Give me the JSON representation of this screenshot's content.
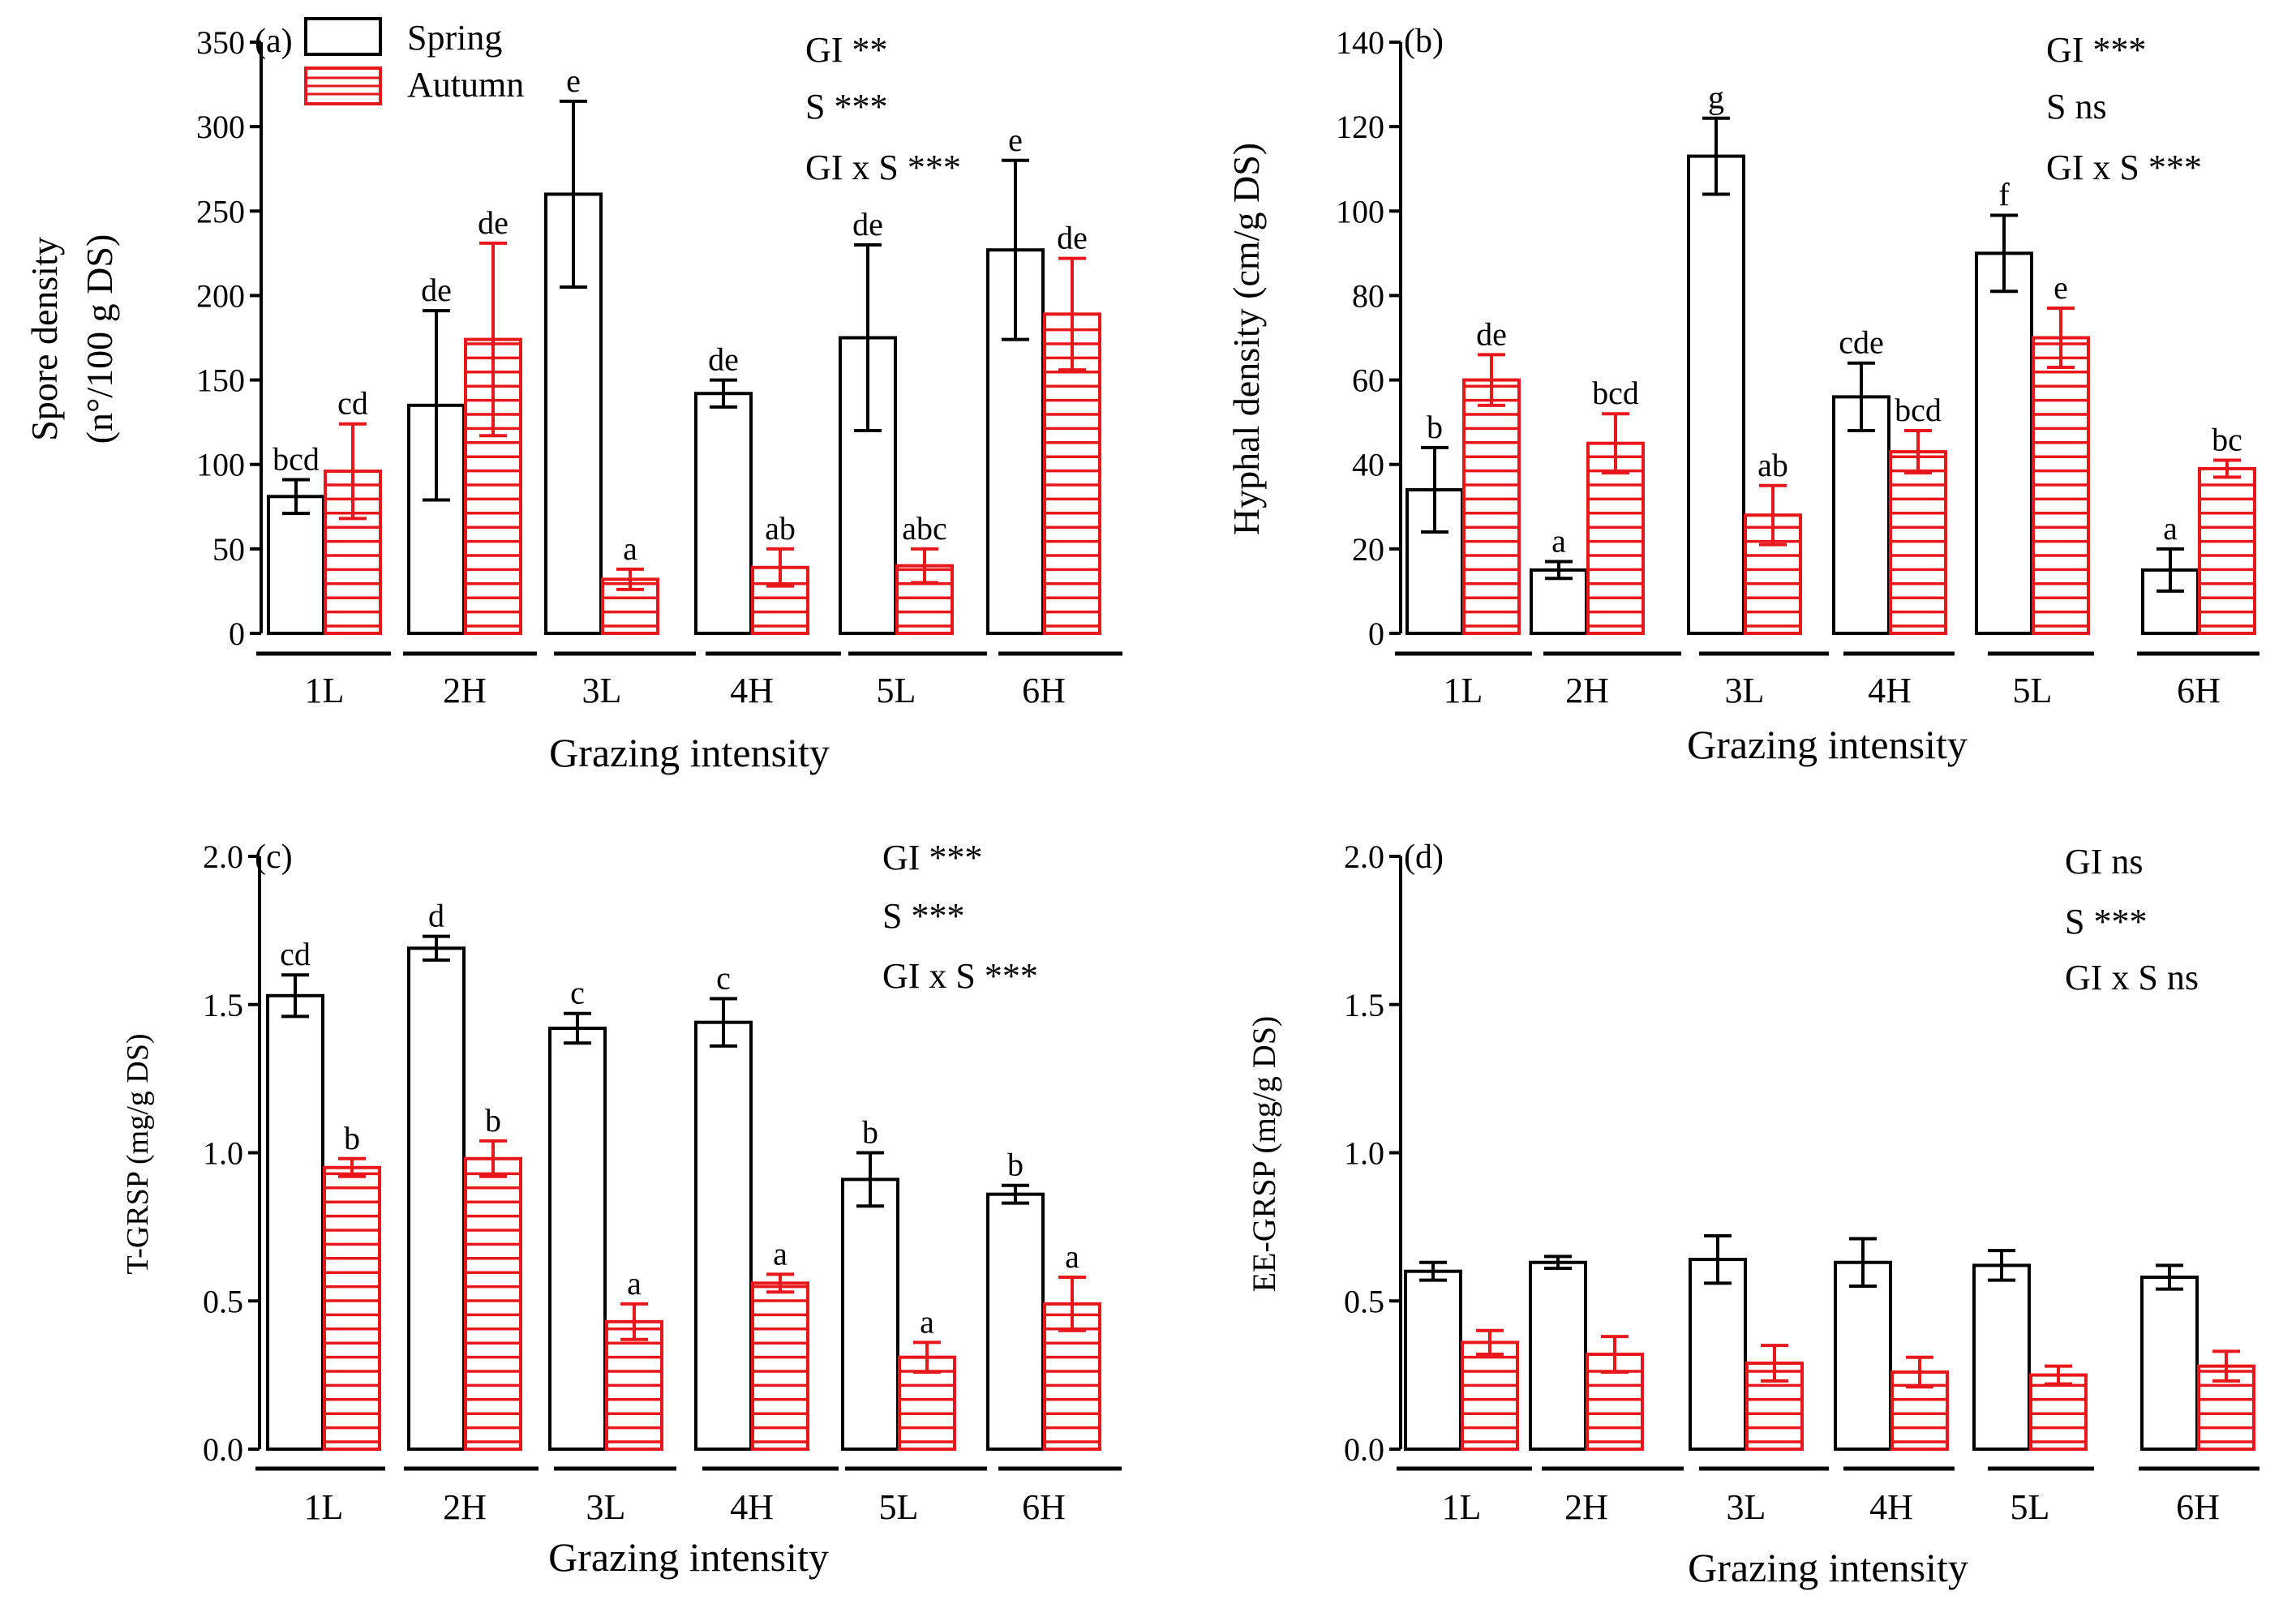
{
  "colors": {
    "spring": "#000000",
    "autumn": "#e8171b",
    "background": "#ffffff"
  },
  "legend": {
    "spring": "Spring",
    "autumn": "Autumn"
  },
  "chart_data": [
    {
      "panel": "(a)",
      "type": "bar",
      "ylabel_lines": [
        "Spore density",
        "(n°/100 g DS)"
      ],
      "xlabel": "Grazing intensity",
      "categories": [
        "1L",
        "2H",
        "3L",
        "4H",
        "5L",
        "6H"
      ],
      "ylim": [
        0,
        350
      ],
      "yticks": [
        0,
        50,
        100,
        150,
        200,
        250,
        300,
        350
      ],
      "ytick_labels": [
        "0",
        "50",
        "100",
        "150",
        "200",
        "250",
        "300",
        "350"
      ],
      "series": [
        {
          "name": "Spring",
          "values": [
            81,
            135,
            260,
            142,
            175,
            227
          ],
          "errors": [
            10,
            56,
            55,
            8,
            55,
            53
          ],
          "letters": [
            "bcd",
            "de",
            "e",
            "de",
            "de",
            "e"
          ]
        },
        {
          "name": "Autumn",
          "values": [
            96,
            174,
            32,
            39,
            40,
            189
          ],
          "errors": [
            28,
            57,
            6,
            11,
            10,
            33
          ],
          "letters": [
            "cd",
            "de",
            "a",
            "ab",
            "abc",
            "de"
          ]
        }
      ],
      "stats": [
        "GI **",
        "S ***",
        "GI x S ***"
      ],
      "legend_shown": true
    },
    {
      "panel": "(b)",
      "type": "bar",
      "ylabel_lines": [
        "Hyphal density (cm/g DS)"
      ],
      "xlabel": "Grazing intensity",
      "categories": [
        "1L",
        "2H",
        "3L",
        "4H",
        "5L",
        "6H"
      ],
      "ylim": [
        0,
        140
      ],
      "yticks": [
        0,
        20,
        40,
        60,
        80,
        100,
        120,
        140
      ],
      "ytick_labels": [
        "0",
        "20",
        "40",
        "60",
        "80",
        "100",
        "120",
        "140"
      ],
      "series": [
        {
          "name": "Spring",
          "values": [
            34,
            15,
            113,
            56,
            90,
            15
          ],
          "errors": [
            10,
            2,
            9,
            8,
            9,
            5
          ],
          "letters": [
            "b",
            "a",
            "g",
            "cde",
            "f",
            "a"
          ]
        },
        {
          "name": "Autumn",
          "values": [
            60,
            45,
            28,
            43,
            70,
            39
          ],
          "errors": [
            6,
            7,
            7,
            5,
            7,
            2
          ],
          "letters": [
            "de",
            "bcd",
            "ab",
            "bcd",
            "e",
            "bc"
          ]
        }
      ],
      "stats": [
        "GI ***",
        "S ns",
        "GI x S ***"
      ],
      "legend_shown": false
    },
    {
      "panel": "(c)",
      "type": "bar",
      "ylabel_lines": [
        "T-GRSP (mg/g DS)"
      ],
      "xlabel": "Grazing intensity",
      "categories": [
        "1L",
        "2H",
        "3L",
        "4H",
        "5L",
        "6H"
      ],
      "ylim": [
        0,
        2.0
      ],
      "yticks": [
        0,
        0.5,
        1.0,
        1.5,
        2.0
      ],
      "ytick_labels": [
        "0.0",
        "0.5",
        "1.0",
        "1.5",
        "2.0"
      ],
      "series": [
        {
          "name": "Spring",
          "values": [
            1.53,
            1.69,
            1.42,
            1.44,
            0.91,
            0.86
          ],
          "errors": [
            0.07,
            0.04,
            0.05,
            0.08,
            0.09,
            0.03
          ],
          "letters": [
            "cd",
            "d",
            "c",
            "c",
            "b",
            "b"
          ]
        },
        {
          "name": "Autumn",
          "values": [
            0.95,
            0.98,
            0.43,
            0.56,
            0.31,
            0.49
          ],
          "errors": [
            0.03,
            0.06,
            0.06,
            0.03,
            0.05,
            0.09
          ],
          "letters": [
            "b",
            "b",
            "a",
            "a",
            "a",
            "a"
          ]
        }
      ],
      "stats": [
        "GI ***",
        "S ***",
        "GI x S ***"
      ],
      "legend_shown": false
    },
    {
      "panel": "(d)",
      "type": "bar",
      "ylabel_lines": [
        "EE-GRSP (mg/g DS)"
      ],
      "xlabel": "Grazing intensity",
      "categories": [
        "1L",
        "2H",
        "3L",
        "4H",
        "5L",
        "6H"
      ],
      "ylim": [
        0,
        2.0
      ],
      "yticks": [
        0,
        0.5,
        1.0,
        1.5,
        2.0
      ],
      "ytick_labels": [
        "0.0",
        "0.5",
        "1.0",
        "1.5",
        "2.0"
      ],
      "series": [
        {
          "name": "Spring",
          "values": [
            0.6,
            0.63,
            0.64,
            0.63,
            0.62,
            0.58
          ],
          "errors": [
            0.03,
            0.02,
            0.08,
            0.08,
            0.05,
            0.04
          ],
          "letters": [
            "",
            "",
            "",
            "",
            "",
            ""
          ]
        },
        {
          "name": "Autumn",
          "values": [
            0.36,
            0.32,
            0.29,
            0.26,
            0.25,
            0.28
          ],
          "errors": [
            0.04,
            0.06,
            0.06,
            0.05,
            0.03,
            0.05
          ],
          "letters": [
            "",
            "",
            "",
            "",
            "",
            ""
          ]
        }
      ],
      "stats": [
        "GI ns",
        "S ***",
        "GI x S ns"
      ],
      "legend_shown": false
    }
  ]
}
